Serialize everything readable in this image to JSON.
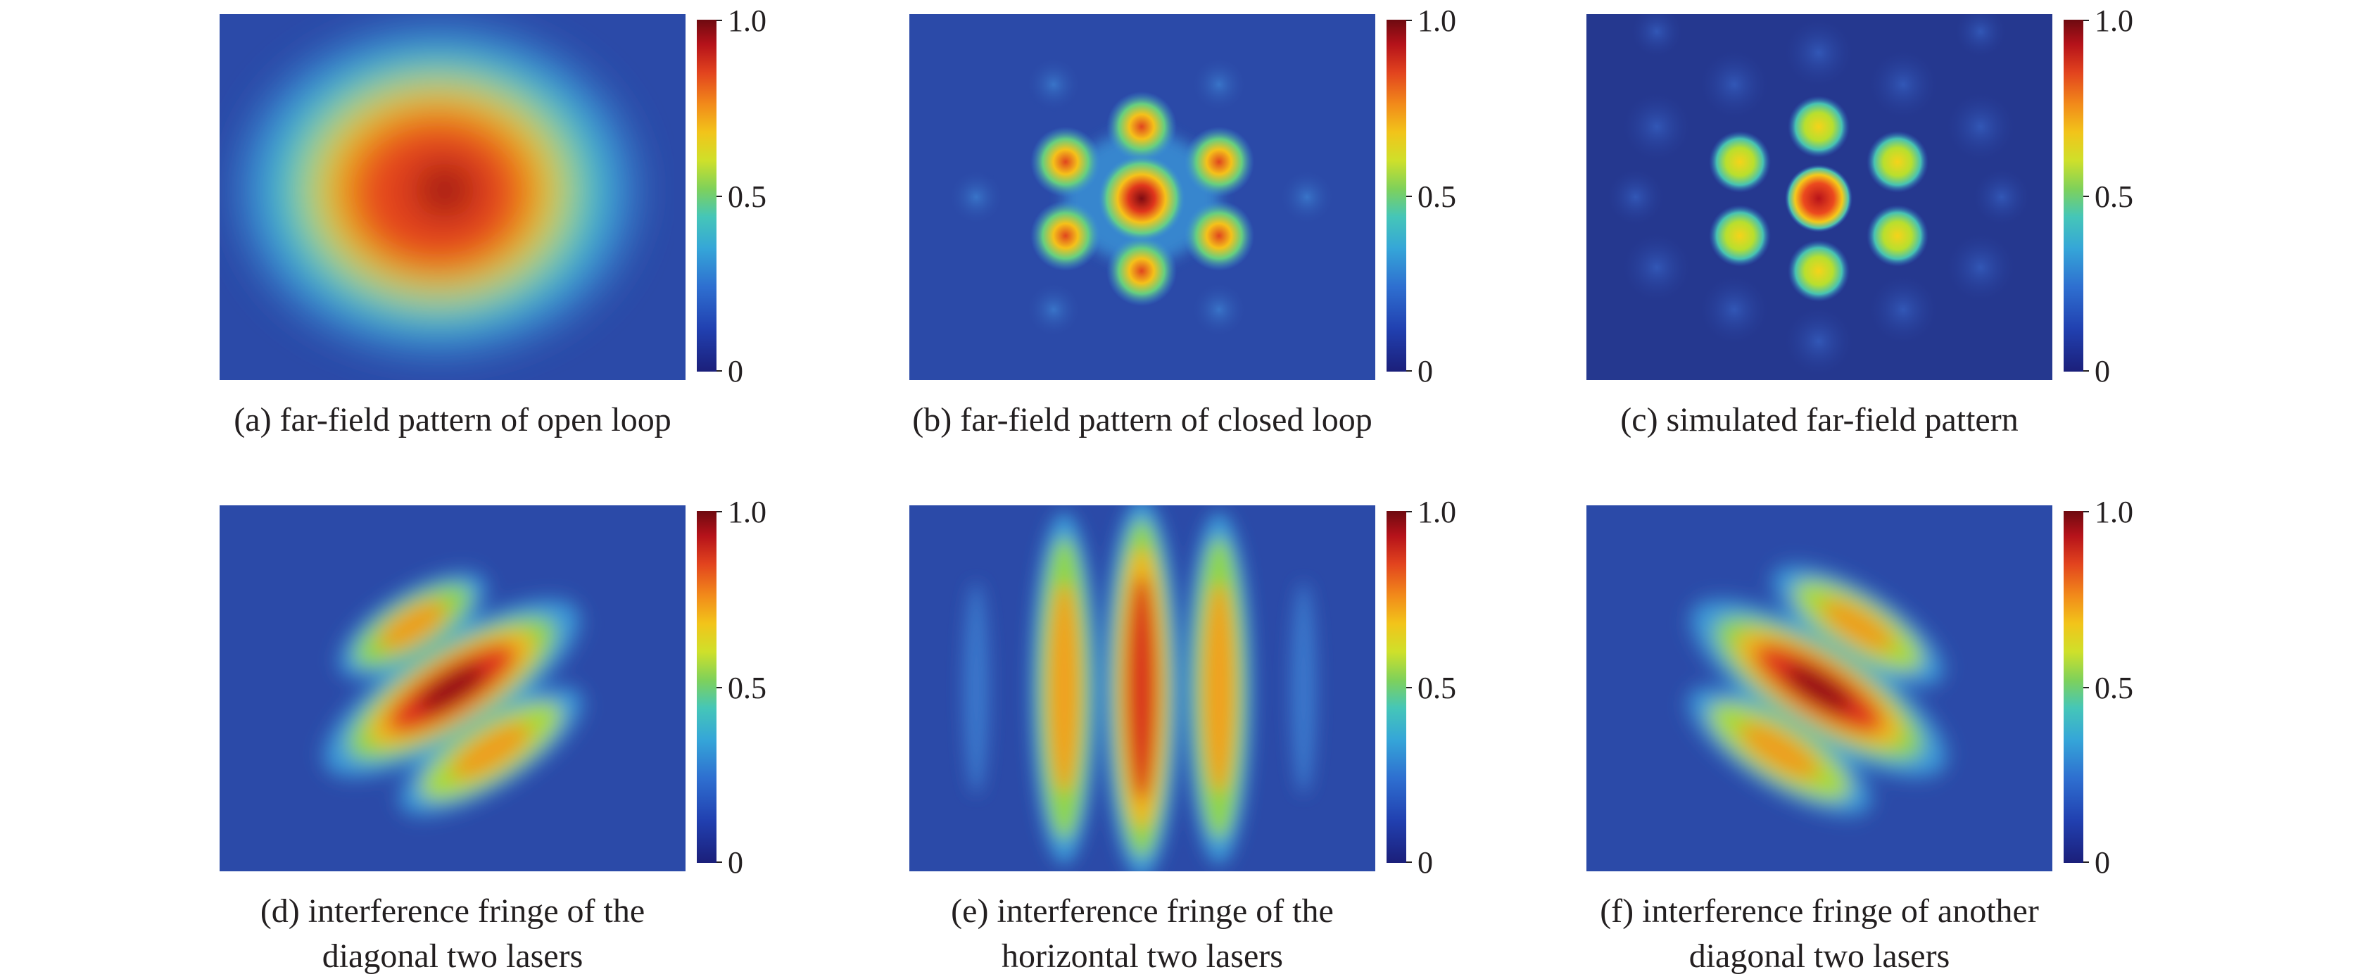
{
  "colorbar": {
    "max_label": "1.0",
    "mid_label": "0.5",
    "min_label": "0"
  },
  "panels": [
    {
      "caption": "(a) far-field pattern of open loop",
      "pattern": "open-loop blob"
    },
    {
      "caption": "(b) far-field pattern of closed loop",
      "pattern": "hexagonal spots"
    },
    {
      "caption": "(c) simulated far-field pattern",
      "pattern": "hexagonal spots simulated"
    },
    {
      "caption": "(d) interference fringe of the\ndiagonal two lasers",
      "pattern": "diagonal fringes"
    },
    {
      "caption": "(e) interference fringe of the\nhorizontal two lasers",
      "pattern": "vertical fringes"
    },
    {
      "caption": "(f) interference fringe of another\ndiagonal two lasers",
      "pattern": "anti-diagonal fringes"
    }
  ]
}
